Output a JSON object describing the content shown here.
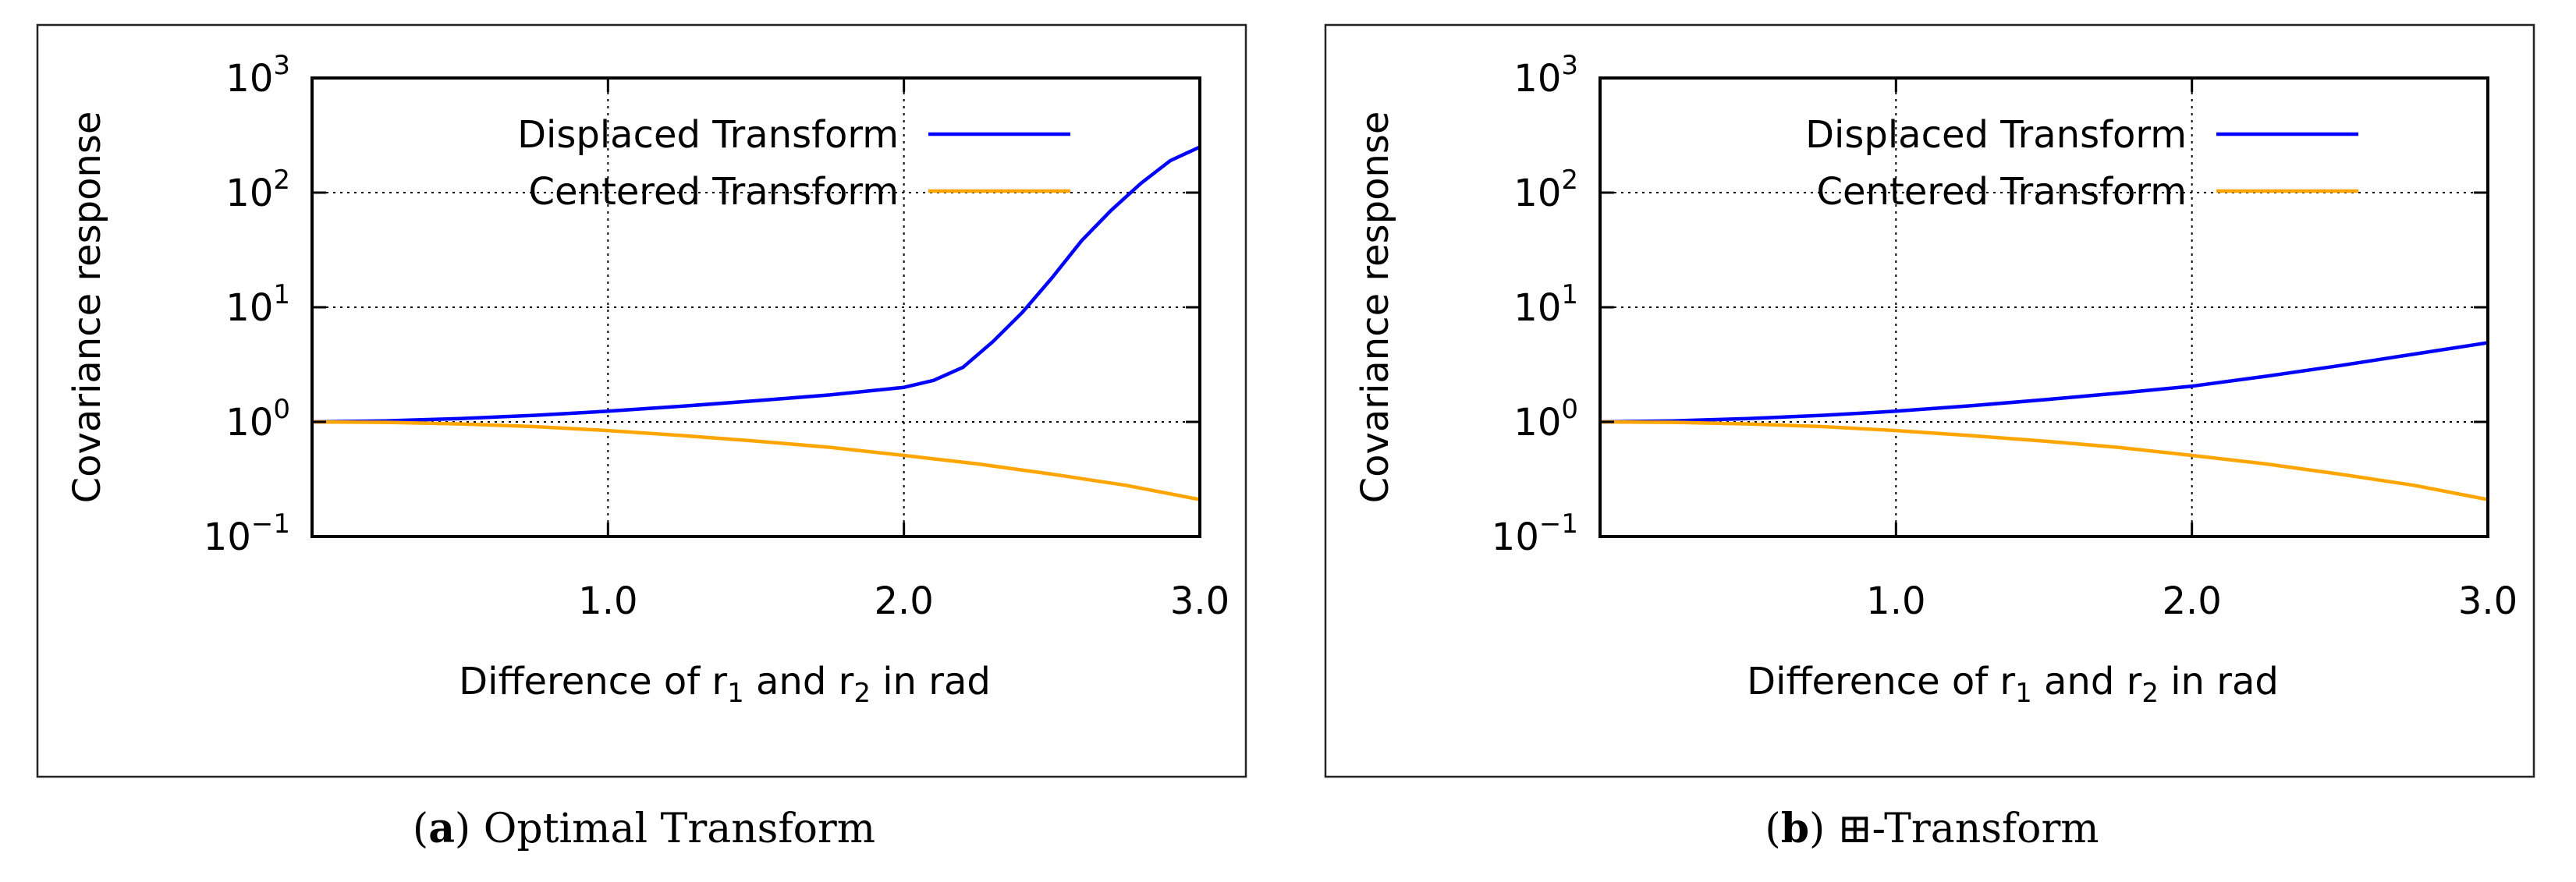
{
  "chart_data": [
    {
      "type": "line",
      "panel_label": "a",
      "caption": "Optimal Transform",
      "xlabel_prefix": "Difference of r",
      "xlabel_sub1": "1",
      "xlabel_mid": " and r",
      "xlabel_sub2": "2",
      "xlabel_suffix": " in rad",
      "ylabel": "Covariance response",
      "yscale": "log",
      "xlim": [
        0.0,
        3.0
      ],
      "ylim": [
        0.1,
        1000
      ],
      "xticks": [
        "1.0",
        "2.0",
        "3.0"
      ],
      "yticks": [
        {
          "base": "10",
          "exp": "−1"
        },
        {
          "base": "10",
          "exp": "0"
        },
        {
          "base": "10",
          "exp": "1"
        },
        {
          "base": "10",
          "exp": "2"
        },
        {
          "base": "10",
          "exp": "3"
        }
      ],
      "grid": true,
      "legend_position": "top-right",
      "series": [
        {
          "name": "Displaced Transform",
          "color": "#0000ff",
          "x": [
            0.0,
            0.25,
            0.5,
            0.75,
            1.0,
            1.25,
            1.5,
            1.75,
            2.0,
            2.1,
            2.2,
            2.3,
            2.4,
            2.5,
            2.6,
            2.7,
            2.8,
            2.9,
            3.0
          ],
          "y": [
            1.0,
            1.02,
            1.07,
            1.14,
            1.24,
            1.37,
            1.53,
            1.72,
            2.0,
            2.3,
            3.0,
            5.0,
            9.0,
            18.0,
            38.0,
            70.0,
            120.0,
            190.0,
            250.0
          ]
        },
        {
          "name": "Centered Transform",
          "color": "#ffa500",
          "x": [
            0.0,
            0.25,
            0.5,
            0.75,
            1.0,
            1.25,
            1.5,
            1.75,
            2.0,
            2.25,
            2.5,
            2.75,
            3.0
          ],
          "y": [
            1.0,
            0.99,
            0.96,
            0.91,
            0.84,
            0.76,
            0.68,
            0.6,
            0.51,
            0.43,
            0.35,
            0.28,
            0.21
          ]
        }
      ]
    },
    {
      "type": "line",
      "panel_label": "b",
      "caption_symbol": "⊞",
      "caption": "-Transform",
      "xlabel_prefix": "Difference of r",
      "xlabel_sub1": "1",
      "xlabel_mid": " and r",
      "xlabel_sub2": "2",
      "xlabel_suffix": " in rad",
      "ylabel": "Covariance response",
      "yscale": "log",
      "xlim": [
        0.0,
        3.0
      ],
      "ylim": [
        0.1,
        1000
      ],
      "xticks": [
        "1.0",
        "2.0",
        "3.0"
      ],
      "yticks": [
        {
          "base": "10",
          "exp": "−1"
        },
        {
          "base": "10",
          "exp": "0"
        },
        {
          "base": "10",
          "exp": "1"
        },
        {
          "base": "10",
          "exp": "2"
        },
        {
          "base": "10",
          "exp": "3"
        }
      ],
      "grid": true,
      "legend_position": "top-right",
      "series": [
        {
          "name": "Displaced Transform",
          "color": "#0000ff",
          "x": [
            0.0,
            0.25,
            0.5,
            0.75,
            1.0,
            1.25,
            1.5,
            1.75,
            2.0,
            2.25,
            2.5,
            2.75,
            3.0
          ],
          "y": [
            1.0,
            1.02,
            1.07,
            1.14,
            1.24,
            1.38,
            1.56,
            1.78,
            2.05,
            2.5,
            3.1,
            3.9,
            4.9
          ]
        },
        {
          "name": "Centered Transform",
          "color": "#ffa500",
          "x": [
            0.0,
            0.25,
            0.5,
            0.75,
            1.0,
            1.25,
            1.5,
            1.75,
            2.0,
            2.25,
            2.5,
            2.75,
            3.0
          ],
          "y": [
            1.0,
            0.99,
            0.96,
            0.91,
            0.84,
            0.76,
            0.68,
            0.6,
            0.51,
            0.43,
            0.35,
            0.28,
            0.21
          ]
        }
      ]
    }
  ]
}
